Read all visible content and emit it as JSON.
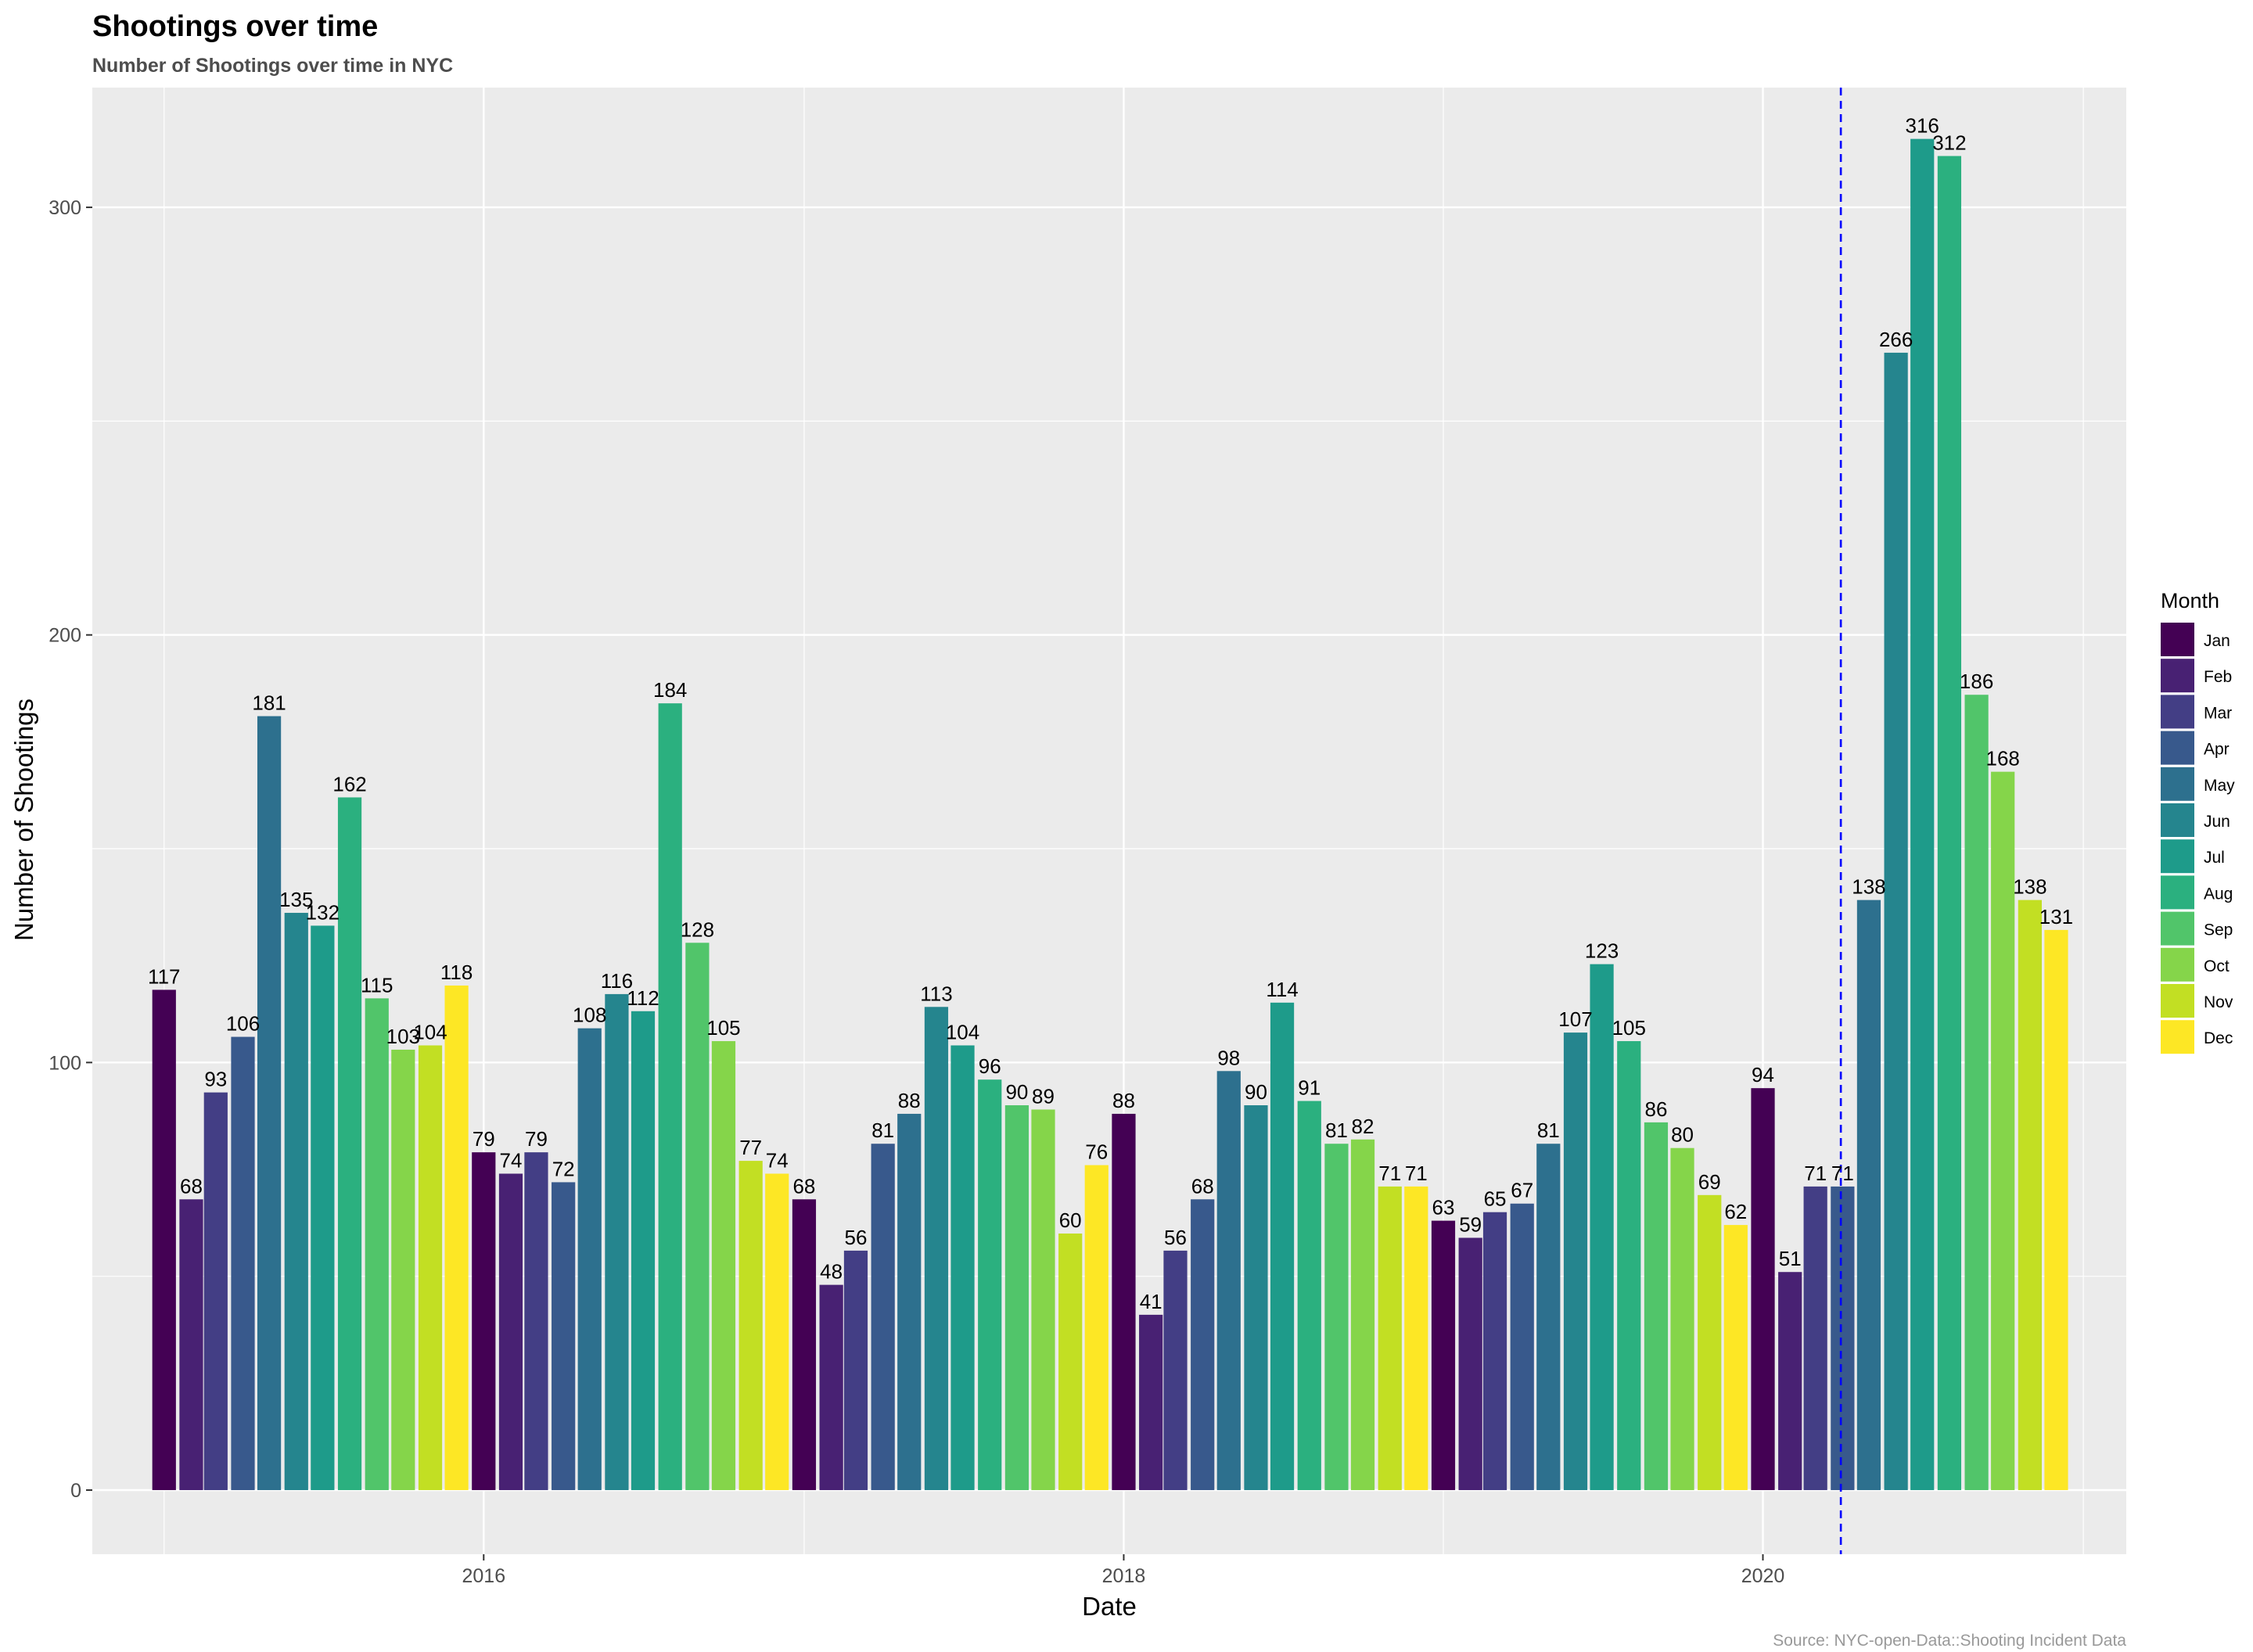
{
  "chart_data": {
    "type": "bar",
    "title": "Shootings over time",
    "subtitle": "Number of Shootings over time in NYC",
    "xlabel": "Date",
    "ylabel": "Number of Shootings",
    "caption": "Source: NYC-open-Data::Shooting Incident Data",
    "xlim": [
      "2014-10-11",
      "2021-02-19"
    ],
    "ylim": [
      -15,
      328
    ],
    "x_ticks": [
      "2016-01-01",
      "2018-01-01",
      "2020-01-01"
    ],
    "x_tick_labels": [
      "2016",
      "2018",
      "2020"
    ],
    "y_ticks": [
      0,
      100,
      200,
      300
    ],
    "y_tick_labels": [
      "0",
      "100",
      "200",
      "300"
    ],
    "grid": true,
    "legend": {
      "title": "Month",
      "position": "right",
      "items": [
        {
          "label": "Jan",
          "color": "#440154"
        },
        {
          "label": "Feb",
          "color": "#482173"
        },
        {
          "label": "Mar",
          "color": "#433E85"
        },
        {
          "label": "Apr",
          "color": "#38598C"
        },
        {
          "label": "May",
          "color": "#2D708E"
        },
        {
          "label": "Jun",
          "color": "#25858E"
        },
        {
          "label": "Jul",
          "color": "#1E9B8A"
        },
        {
          "label": "Aug",
          "color": "#2BB07F"
        },
        {
          "label": "Sep",
          "color": "#51C56A"
        },
        {
          "label": "Oct",
          "color": "#85D54A"
        },
        {
          "label": "Nov",
          "color": "#C2DF23"
        },
        {
          "label": "Dec",
          "color": "#FDE725"
        }
      ]
    },
    "vline": {
      "date": "2020-03-30",
      "color": "#0000FF",
      "style": "dashed"
    },
    "years": [
      2015,
      2016,
      2017,
      2018,
      2019,
      2020
    ],
    "values": [
      [
        117,
        68,
        93,
        106,
        181,
        135,
        132,
        162,
        115,
        103,
        104,
        118
      ],
      [
        79,
        74,
        79,
        72,
        108,
        116,
        112,
        184,
        128,
        105,
        77,
        74
      ],
      [
        68,
        48,
        56,
        81,
        88,
        113,
        104,
        96,
        90,
        89,
        60,
        76
      ],
      [
        88,
        41,
        56,
        68,
        98,
        90,
        114,
        91,
        81,
        82,
        71,
        71
      ],
      [
        63,
        59,
        65,
        67,
        81,
        107,
        123,
        105,
        86,
        80,
        69,
        62
      ],
      [
        94,
        51,
        71,
        71,
        138,
        266,
        316,
        312,
        186,
        168,
        138,
        131
      ]
    ]
  }
}
